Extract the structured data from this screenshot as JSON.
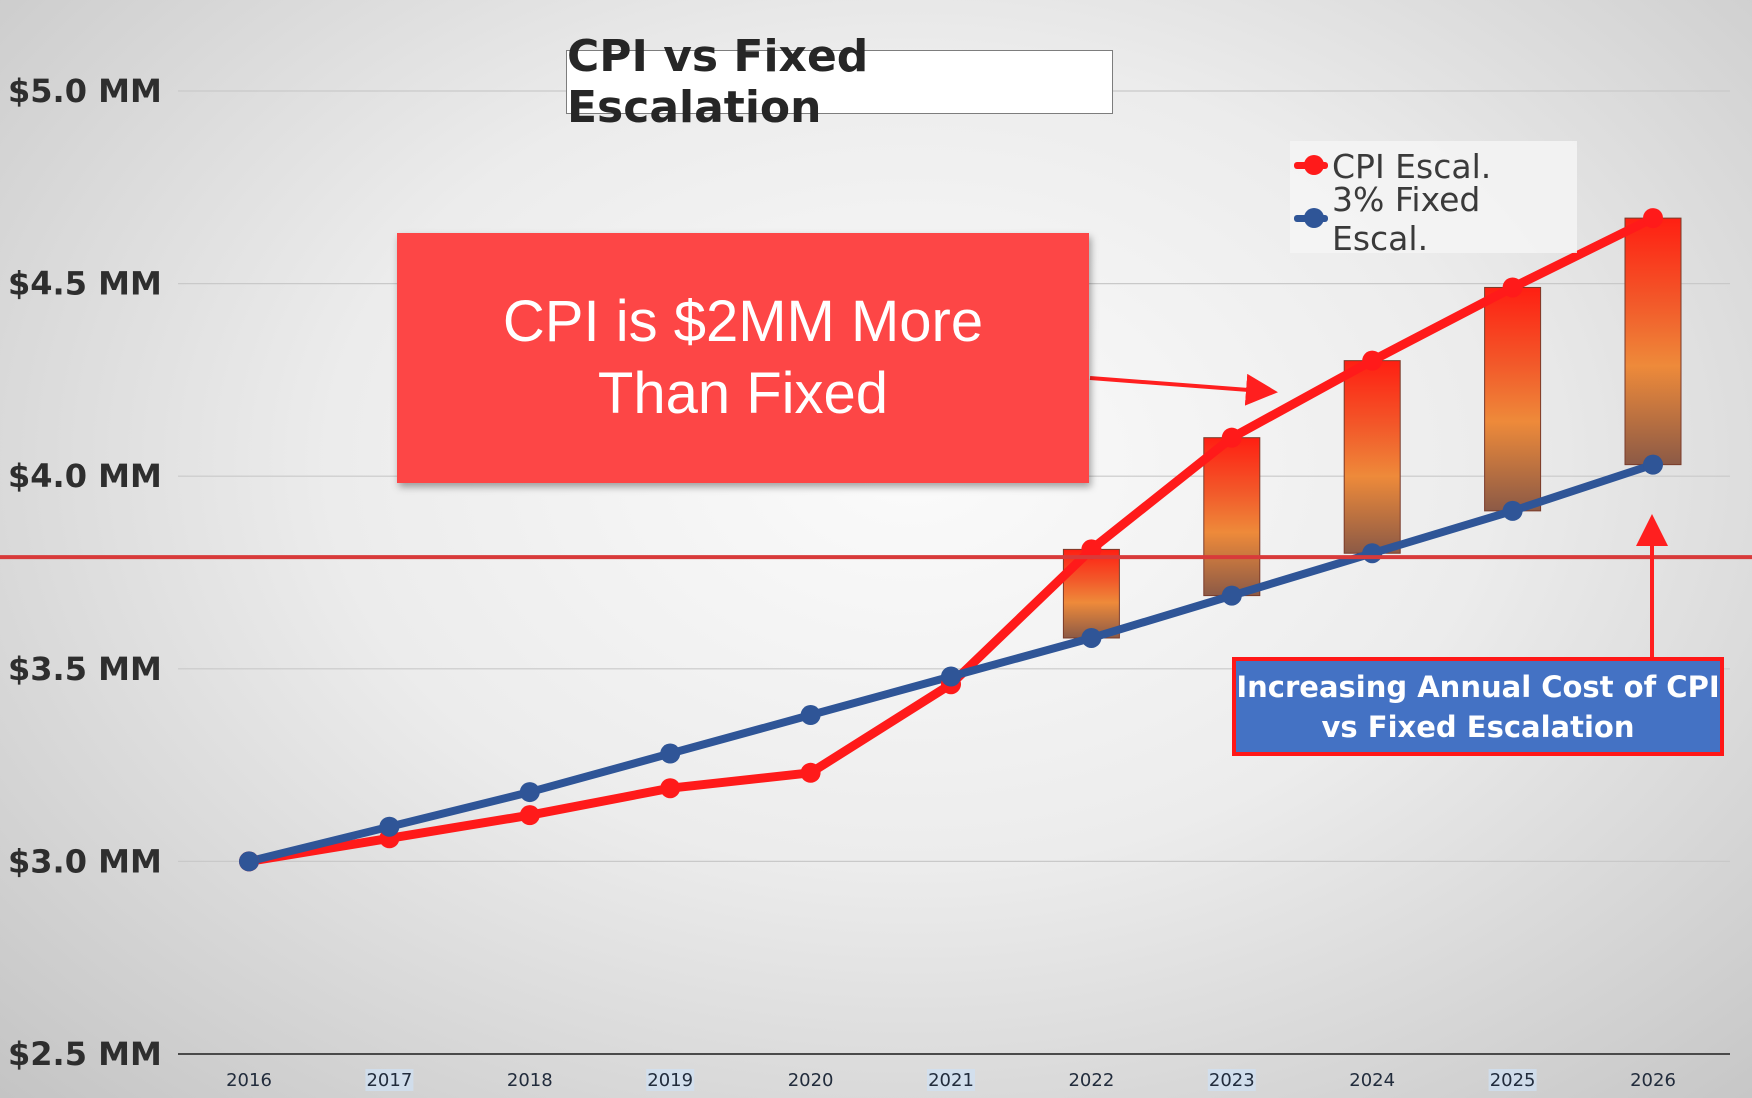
{
  "chart_data": {
    "type": "line",
    "title": "CPI vs Fixed Escalation",
    "categories": [
      "2016",
      "2017",
      "2018",
      "2019",
      "2020",
      "2021",
      "2022",
      "2023",
      "2024",
      "2025",
      "2026"
    ],
    "y_ticks": [
      "$2.5 MM",
      "$3.0 MM",
      "$3.5 MM",
      "$4.0 MM",
      "$4.5 MM",
      "$5.0 MM"
    ],
    "y_tick_values": [
      2.5,
      3.0,
      3.5,
      4.0,
      4.5,
      5.0
    ],
    "ylim": [
      2.5,
      5.0
    ],
    "series": [
      {
        "name": "CPI Escal.",
        "color": "#ff1a1a",
        "values": [
          3.0,
          3.06,
          3.12,
          3.19,
          3.23,
          3.46,
          3.81,
          4.1,
          4.3,
          4.49,
          4.67
        ]
      },
      {
        "name": "3% Fixed Escal.",
        "color": "#2f5597",
        "values": [
          3.0,
          3.09,
          3.18,
          3.28,
          3.38,
          3.48,
          3.58,
          3.69,
          3.8,
          3.91,
          4.03
        ]
      }
    ],
    "difference_bars": {
      "categories": [
        "2022",
        "2023",
        "2024",
        "2025",
        "2026"
      ]
    },
    "reference_line_value": 3.79,
    "grid": true,
    "legend_position": "top-right"
  },
  "callout": {
    "line1": "CPI is $2MM More",
    "line2": "Than Fixed"
  },
  "note": {
    "line1": "Increasing Annual Cost of CPI",
    "line2": "vs Fixed Escalation"
  }
}
